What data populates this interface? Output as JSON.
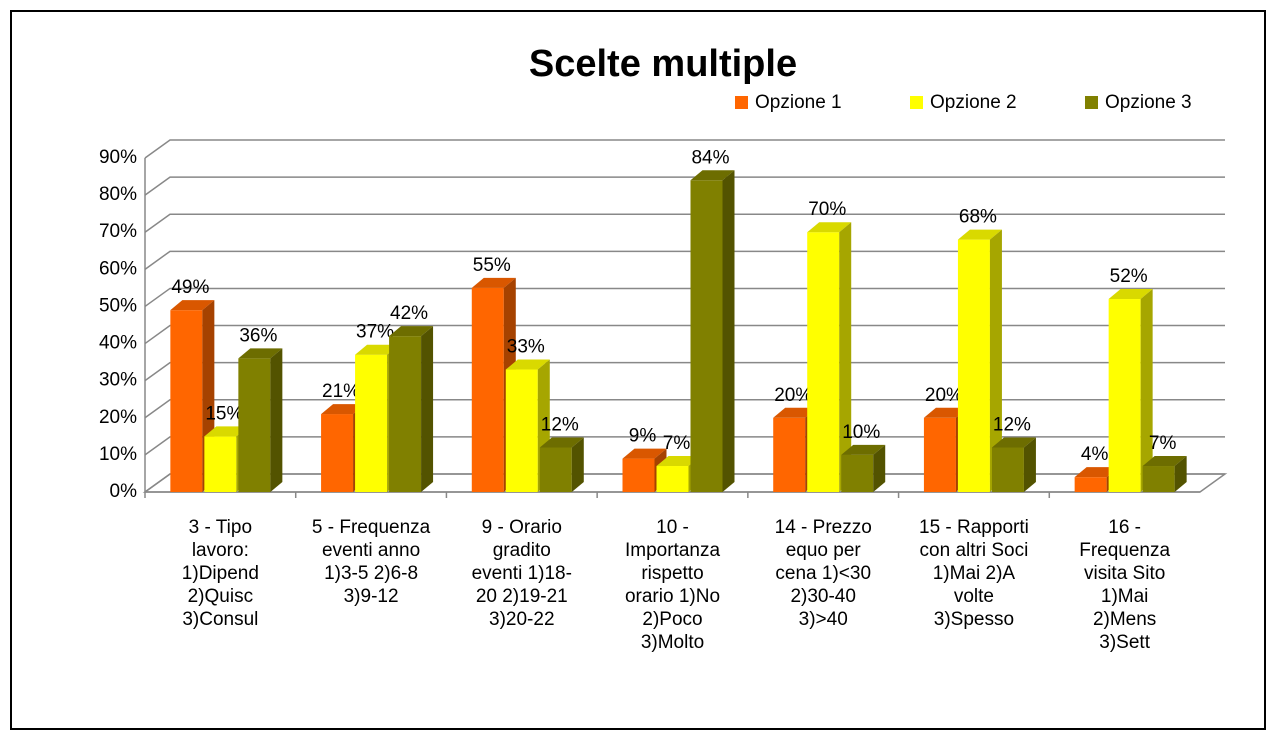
{
  "chart_data": {
    "type": "bar3d",
    "title": "Scelte multiple",
    "categories": [
      "3 - Tipo\nlavoro:\n1)Dipend\n2)Quisc\n3)Consul",
      "5 - Frequenza\neventi anno\n1)3-5  2)6-8\n3)9-12",
      "9 - Orario\ngradito\neventi 1)18-\n20  2)19-21\n3)20-22",
      "10 -\nImportanza\nrispetto\norario 1)No\n2)Poco\n3)Molto",
      "14 - Prezzo\nequo per\ncena 1)<30\n2)30-40\n3)>40",
      "15 - Rapporti\ncon altri Soci\n1)Mai 2)A\nvolte\n3)Spesso",
      "16 -\nFrequenza\nvisita Sito\n1)Mai\n2)Mens\n3)Sett"
    ],
    "series": [
      {
        "name": "Opzione 1",
        "color": "#ff6600",
        "values": [
          49,
          21,
          55,
          9,
          20,
          20,
          4
        ],
        "value_labels": [
          "49%",
          "21%",
          "55%",
          "9%",
          "20%",
          "20%",
          "4%"
        ]
      },
      {
        "name": "Opzione 2",
        "color": "#ffff00",
        "values": [
          15,
          37,
          33,
          7,
          70,
          68,
          52
        ],
        "value_labels": [
          "15%",
          "37%",
          "33%",
          "7%",
          "70%",
          "68%",
          "52%"
        ]
      },
      {
        "name": "Opzione 3",
        "color": "#808000",
        "values": [
          36,
          42,
          12,
          84,
          10,
          12,
          7
        ],
        "value_labels": [
          "36%",
          "42%",
          "12%",
          "84%",
          "10%",
          "12%",
          "7%"
        ]
      }
    ],
    "ylim": [
      0,
      90
    ],
    "yticks": [
      {
        "value": 0,
        "label": "0%"
      },
      {
        "value": 10,
        "label": "10%"
      },
      {
        "value": 20,
        "label": "20%"
      },
      {
        "value": 30,
        "label": "30%"
      },
      {
        "value": 40,
        "label": "40%"
      },
      {
        "value": 50,
        "label": "50%"
      },
      {
        "value": 60,
        "label": "60%"
      },
      {
        "value": 70,
        "label": "70%"
      },
      {
        "value": 80,
        "label": "80%"
      },
      {
        "value": 90,
        "label": "90%"
      }
    ],
    "grid": true,
    "legend": "top-right"
  }
}
